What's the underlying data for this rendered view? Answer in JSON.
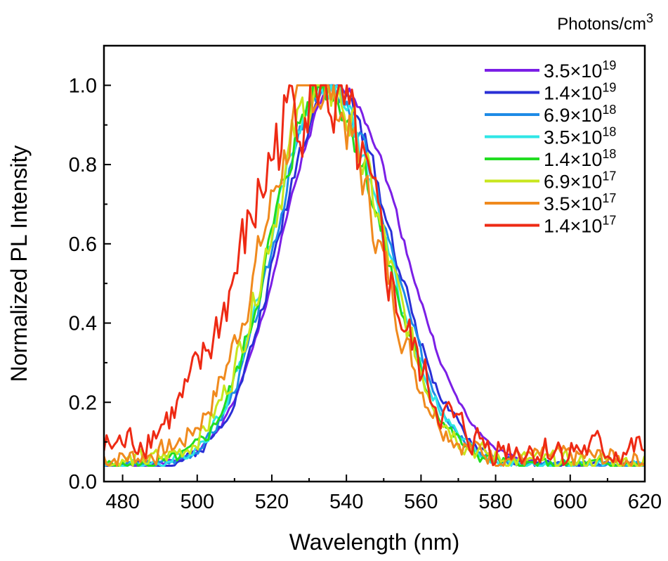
{
  "chart_data": {
    "type": "line",
    "xlabel": "Wavelength (nm)",
    "ylabel": "Normalized PL Intensity",
    "xlim": [
      475,
      620
    ],
    "ylim": [
      0.0,
      1.1
    ],
    "xticks": [
      {
        "value": 480,
        "label": "480"
      },
      {
        "value": 500,
        "label": "500"
      },
      {
        "value": 520,
        "label": "520"
      },
      {
        "value": 540,
        "label": "540"
      },
      {
        "value": 560,
        "label": "560"
      },
      {
        "value": 580,
        "label": "580"
      },
      {
        "value": 600,
        "label": "600"
      },
      {
        "value": 620,
        "label": "620"
      }
    ],
    "yticks": [
      {
        "value": 0.0,
        "label": "0.0"
      },
      {
        "value": 0.2,
        "label": "0.2"
      },
      {
        "value": 0.4,
        "label": "0.4"
      },
      {
        "value": 0.6,
        "label": "0.6"
      },
      {
        "value": 0.8,
        "label": "0.8"
      },
      {
        "value": 1.0,
        "label": "1.0"
      }
    ],
    "legend": {
      "title": "Photons/cm",
      "title_sup": "3",
      "placement": "top-right",
      "box": false
    },
    "grid": false,
    "series": [
      {
        "name_base": "3.5×10",
        "name_exp": "19",
        "color": "#7B1FE6",
        "mu": 538,
        "sig_l": 15,
        "sig_r": 17,
        "base": 0.04,
        "noise": 0.01,
        "seed": 1
      },
      {
        "name_base": "1.4×10",
        "name_exp": "19",
        "color": "#2A2FD6",
        "mu": 536,
        "sig_l": 14,
        "sig_r": 16,
        "base": 0.04,
        "noise": 0.02,
        "seed": 2
      },
      {
        "name_base": "6.9×10",
        "name_exp": "18",
        "color": "#1E8BE6",
        "mu": 535,
        "sig_l": 14,
        "sig_r": 16,
        "base": 0.04,
        "noise": 0.02,
        "seed": 3
      },
      {
        "name_base": "3.5×10",
        "name_exp": "18",
        "color": "#2EE6E6",
        "mu": 534,
        "sig_l": 14,
        "sig_r": 16,
        "base": 0.04,
        "noise": 0.025,
        "seed": 4
      },
      {
        "name_base": "1.4×10",
        "name_exp": "18",
        "color": "#22DD22",
        "mu": 534,
        "sig_l": 14,
        "sig_r": 15.5,
        "base": 0.04,
        "noise": 0.03,
        "seed": 5
      },
      {
        "name_base": "6.9×10",
        "name_exp": "17",
        "color": "#C8E61E",
        "mu": 534,
        "sig_l": 14.5,
        "sig_r": 15.5,
        "base": 0.05,
        "noise": 0.045,
        "seed": 6
      },
      {
        "name_base": "3.5×10",
        "name_exp": "17",
        "color": "#F08A1E",
        "mu": 533,
        "sig_l": 15,
        "sig_r": 15,
        "base": 0.06,
        "noise": 0.05,
        "seed": 7
      },
      {
        "name_base": "1.4×10",
        "name_exp": "17",
        "color": "#EE2A14",
        "mu": 532,
        "sig_l": 18,
        "sig_r": 16,
        "base": 0.08,
        "noise": 0.08,
        "seed": 8
      }
    ]
  }
}
